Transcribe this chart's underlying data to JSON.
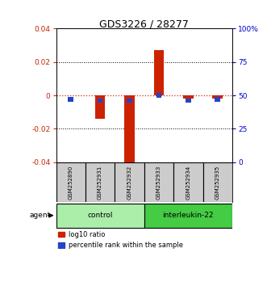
{
  "title": "GDS3226 / 28277",
  "samples": [
    "GSM252890",
    "GSM252931",
    "GSM252932",
    "GSM252933",
    "GSM252934",
    "GSM252935"
  ],
  "log10_ratio": [
    0.0,
    -0.014,
    -0.042,
    0.027,
    -0.002,
    -0.002
  ],
  "percentile_rank": [
    47,
    46,
    46,
    50,
    46,
    47
  ],
  "ylim_left": [
    -0.04,
    0.04
  ],
  "ylim_right": [
    0,
    100
  ],
  "y_ticks_left": [
    -0.04,
    -0.02,
    0,
    0.02,
    0.04
  ],
  "y_ticks_right": [
    0,
    25,
    50,
    75,
    100
  ],
  "groups": [
    {
      "label": "control",
      "indices": [
        0,
        1,
        2
      ],
      "color": "#aaeeaa"
    },
    {
      "label": "interleukin-22",
      "indices": [
        3,
        4,
        5
      ],
      "color": "#44cc44"
    }
  ],
  "bar_color_red": "#cc2200",
  "bar_color_blue": "#2244cc",
  "bg_color": "#ffffff",
  "zero_line_color": "#cc2200",
  "tick_color_left": "#cc2200",
  "tick_color_right": "#0000cc",
  "sample_bg": "#cccccc",
  "bar_width": 0.35,
  "blue_bar_width": 0.18
}
